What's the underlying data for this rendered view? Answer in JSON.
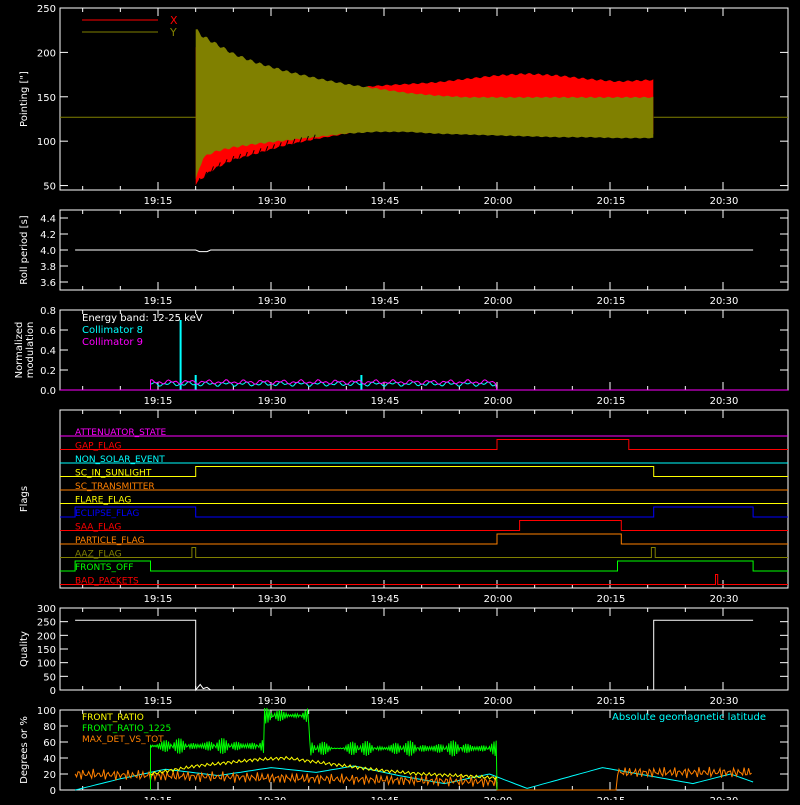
{
  "colors": {
    "background": "#000000",
    "axes": "#ffffff",
    "red": "#ff0000",
    "olive": "#808000",
    "cyan": "#00ffff",
    "magenta": "#ff00ff",
    "green": "#00ff00",
    "blue": "#0000ff",
    "yellow": "#ffff00",
    "orange": "#ff8000"
  },
  "time_ticks": [
    "19:15",
    "19:30",
    "19:45",
    "20:00",
    "20:15",
    "20:30"
  ],
  "chart_data": [
    {
      "id": "pointing",
      "type": "line",
      "ylabel": "Pointing [\"]",
      "ylim": [
        45,
        250
      ],
      "yticks": [
        50,
        100,
        150,
        200,
        250
      ],
      "xunit": "minutes after 19:00",
      "xlim": [
        4,
        94
      ],
      "legend": [
        {
          "name": "X",
          "color": "#ff0000"
        },
        {
          "name": "Y",
          "color": "#808000"
        }
      ],
      "series": [
        {
          "name": "X",
          "color": "#ff0000",
          "baseline": 127,
          "active_x": [
            20.0,
            80.8
          ],
          "envelope": {
            "x": [
              20,
              21,
              22,
              23,
              25,
              28,
              32,
              36,
              40,
              44,
              48,
              52,
              56,
              60,
              64,
              68,
              72,
              76,
              80.8
            ],
            "upper": [
              210,
              200,
              195,
              188,
              180,
              172,
              163,
              157,
              160,
              163,
              165,
              167,
              171,
              175,
              177,
              175,
              171,
              168,
              170
            ],
            "lower": [
              50,
              58,
              65,
              70,
              78,
              85,
              95,
              102,
              108,
              115,
              118,
              118,
              115,
              110,
              106,
              105,
              108,
              110,
              107
            ]
          }
        },
        {
          "name": "Y",
          "color": "#808000",
          "baseline": 127,
          "active_x": [
            20.0,
            80.8
          ],
          "envelope": {
            "x": [
              20,
              21,
              22,
              23,
              25,
              28,
              32,
              36,
              40,
              44,
              48,
              52,
              56,
              60,
              64,
              68,
              72,
              76,
              80.8
            ],
            "upper": [
              228,
              220,
              215,
              210,
              200,
              190,
              180,
              172,
              165,
              160,
              155,
              152,
              150,
              150,
              150,
              150,
              150,
              150,
              150
            ],
            "lower": [
              55,
              80,
              85,
              88,
              92,
              96,
              100,
              104,
              108,
              110,
              110,
              108,
              107,
              106,
              105,
              104,
              104,
              103,
              103
            ]
          }
        }
      ]
    },
    {
      "id": "roll",
      "type": "line",
      "ylabel": "Roll period [s]",
      "ylim": [
        3.5,
        4.5
      ],
      "yticks": [
        3.6,
        3.8,
        4.0,
        4.2,
        4.4
      ],
      "xlim": [
        4,
        94
      ],
      "series": [
        {
          "name": "",
          "color": "#ffffff",
          "x": [
            4,
            10,
            20,
            40,
            60,
            80,
            94
          ],
          "values": [
            4.0,
            4.0,
            4.0,
            4.0,
            4.0,
            4.0,
            4.0
          ]
        }
      ]
    },
    {
      "id": "modulation",
      "type": "line",
      "ylabel": "Normalized modulation",
      "ylim": [
        0,
        0.8
      ],
      "yticks": [
        0.0,
        0.2,
        0.4,
        0.6,
        0.8
      ],
      "xlim": [
        4,
        94
      ],
      "annotation": "Energy band: 12-25 keV",
      "legend": [
        {
          "name": "Collimator 8",
          "color": "#00ffff"
        },
        {
          "name": "Collimator 9",
          "color": "#ff00ff"
        }
      ],
      "series": [
        {
          "name": "Collimator 8",
          "color": "#00ffff",
          "active_x": [
            14,
            60
          ],
          "level": 0.06,
          "spikes": [
            {
              "x": 18,
              "value": 0.7
            },
            {
              "x": 20,
              "value": 0.15
            },
            {
              "x": 42,
              "value": 0.15
            }
          ]
        },
        {
          "name": "Collimator 9",
          "color": "#ff00ff",
          "active_x": [
            14,
            60
          ],
          "level": 0.08,
          "spikes": []
        }
      ]
    },
    {
      "id": "flags",
      "type": "line",
      "ylabel": "Flags",
      "xlim": [
        4,
        94
      ],
      "series": [
        {
          "name": "ATTENUATOR_STATE",
          "color": "#ff00ff",
          "high": []
        },
        {
          "name": "GAP_FLAG",
          "color": "#ff0000",
          "high": [
            [
              60,
              77.5
            ]
          ]
        },
        {
          "name": "NON_SOLAR_EVENT",
          "color": "#00ffff",
          "high": []
        },
        {
          "name": "SC_IN_SUNLIGHT",
          "color": "#ffff00",
          "high": [
            [
              20,
              80.8
            ]
          ]
        },
        {
          "name": "SC_TRANSMITTER",
          "color": "#ff8000",
          "high": []
        },
        {
          "name": "FLARE_FLAG",
          "color": "#ffff00",
          "high": []
        },
        {
          "name": "ECLIPSE_FLAG",
          "color": "#0000ff",
          "high": [
            [
              4,
              20
            ],
            [
              80.8,
              94
            ]
          ]
        },
        {
          "name": "SAA_FLAG",
          "color": "#ff0000",
          "high": [
            [
              63,
              76.5
            ]
          ]
        },
        {
          "name": "PARTICLE_FLAG",
          "color": "#ff8000",
          "high": [
            [
              60,
              76.5
            ]
          ]
        },
        {
          "name": "AAZ_FLAG",
          "color": "#808000",
          "high": [
            [
              19.5,
              20.0
            ],
            [
              80.5,
              81.0
            ]
          ]
        },
        {
          "name": "FRONTS_OFF",
          "color": "#00ff00",
          "high": [
            [
              4,
              14
            ],
            [
              76,
              94
            ]
          ]
        },
        {
          "name": "BAD_PACKETS",
          "color": "#ff0000",
          "high": [
            [
              89,
              89.3
            ]
          ]
        }
      ]
    },
    {
      "id": "quality",
      "type": "line",
      "ylabel": "Quality",
      "ylim": [
        0,
        300
      ],
      "yticks": [
        0,
        50,
        100,
        150,
        200,
        250,
        300
      ],
      "xlim": [
        4,
        94
      ],
      "series": [
        {
          "name": "",
          "color": "#ffffff",
          "x": [
            4,
            20,
            20,
            20.6,
            21,
            21.5,
            22,
            80.8,
            80.8,
            94
          ],
          "values": [
            255,
            255,
            0,
            20,
            5,
            10,
            0,
            0,
            255,
            255
          ]
        }
      ]
    },
    {
      "id": "ratios",
      "type": "line",
      "ylabel": "Degrees or %",
      "ylim": [
        0,
        100
      ],
      "yticks": [
        0,
        20,
        40,
        60,
        80,
        100
      ],
      "xlim": [
        4,
        94
      ],
      "legend": [
        {
          "name": "FRONT_RATIO",
          "color": "#ffff00"
        },
        {
          "name": "FRONT_RATIO_1225",
          "color": "#00ff00"
        },
        {
          "name": "MAX_DET_VS_TOT",
          "color": "#ff8000"
        }
      ],
      "annotation": "Absolute geomagnetic latitude",
      "series": [
        {
          "name": "FRONT_RATIO",
          "color": "#ffff00",
          "x": [
            14,
            20,
            25,
            28,
            32,
            36,
            40,
            44,
            50,
            55,
            60
          ],
          "values": [
            20,
            30,
            35,
            38,
            40,
            35,
            30,
            25,
            20,
            18,
            15
          ]
        },
        {
          "name": "FRONT_RATIO_1225",
          "color": "#00ff00",
          "active_x": [
            14,
            60
          ],
          "segments": [
            {
              "x": [
                14,
                29
              ],
              "level": 55
            },
            {
              "x": [
                29,
                35
              ],
              "level": 93
            },
            {
              "x": [
                35,
                60
              ],
              "level": 52
            }
          ]
        },
        {
          "name": "MAX_DET_VS_TOT",
          "color": "#ff8000",
          "x": [
            4,
            14,
            60,
            76,
            94
          ],
          "values": [
            20,
            18,
            10,
            22,
            22
          ]
        },
        {
          "name": "Absolute geomagnetic latitude",
          "color": "#00ffff",
          "x": [
            4,
            10,
            16,
            23,
            30,
            36,
            41,
            47,
            53,
            59,
            64,
            69,
            74,
            80,
            86,
            91,
            94
          ],
          "values": [
            0,
            14,
            26,
            18,
            28,
            22,
            30,
            18,
            8,
            20,
            2,
            15,
            28,
            18,
            8,
            20,
            10
          ]
        }
      ]
    }
  ]
}
